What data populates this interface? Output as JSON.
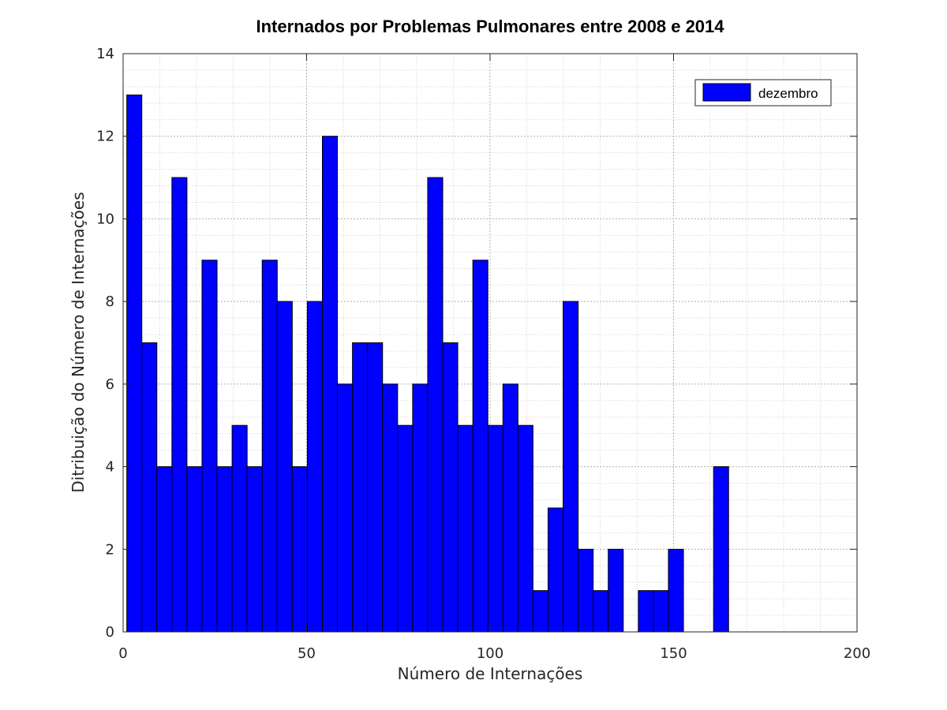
{
  "chart_data": {
    "type": "bar",
    "title": "Internados por Problemas Pulmonares entre 2008 e 2014",
    "xlabel": "Número de Internações",
    "ylabel": "Ditribuição do Número de Internações",
    "xlim": [
      0,
      200
    ],
    "ylim": [
      0,
      14
    ],
    "x_ticks": [
      0,
      50,
      100,
      150,
      200
    ],
    "y_ticks": [
      0,
      2,
      4,
      6,
      8,
      10,
      12,
      14
    ],
    "grid": true,
    "minor_grid": true,
    "legend_position": "top-right",
    "bar_color": "#0000ff",
    "bar_edge_color": "#000000",
    "bin_width": 4.1,
    "bin_start": 1,
    "series": [
      {
        "name": "dezembro",
        "values": [
          13,
          7,
          4,
          11,
          4,
          9,
          4,
          5,
          4,
          9,
          8,
          4,
          8,
          12,
          6,
          7,
          7,
          6,
          5,
          6,
          11,
          7,
          5,
          9,
          5,
          6,
          5,
          1,
          3,
          8,
          2,
          1,
          2,
          0,
          1,
          1,
          2,
          0,
          0,
          4
        ]
      }
    ]
  }
}
